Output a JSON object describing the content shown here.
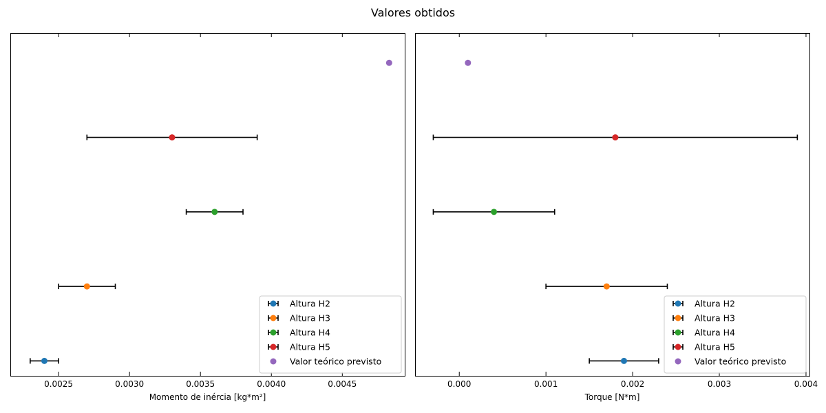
{
  "figure_title": "Valores obtidos",
  "chart_data": [
    {
      "type": "scatter",
      "title": "",
      "xlabel": "Momento de inércia [kg*m²]",
      "ylabel": "",
      "xlim": [
        0.00216,
        0.00494
      ],
      "ylim": [
        -0.2,
        4.4
      ],
      "xticks": [
        0.0025,
        0.003,
        0.0035,
        0.004,
        0.0045
      ],
      "xtick_labels": [
        "0.0025",
        "0.0030",
        "0.0035",
        "0.0040",
        "0.0045"
      ],
      "grid": false,
      "legend_position": "lower-right",
      "series": [
        {
          "name": "Altura H2",
          "color": "#1f77b4",
          "errorbar": true,
          "x": 0.0024,
          "xlow": 0.0023,
          "xhigh": 0.0025,
          "y": 0
        },
        {
          "name": "Altura H3",
          "color": "#ff7f0e",
          "errorbar": true,
          "x": 0.0027,
          "xlow": 0.0025,
          "xhigh": 0.0029,
          "y": 1
        },
        {
          "name": "Altura H4",
          "color": "#2ca02c",
          "errorbar": true,
          "x": 0.0036,
          "xlow": 0.0034,
          "xhigh": 0.0038,
          "y": 2
        },
        {
          "name": "Altura H5",
          "color": "#d62728",
          "errorbar": true,
          "x": 0.0033,
          "xlow": 0.0027,
          "xhigh": 0.0039,
          "y": 3
        },
        {
          "name": "Valor teórico previsto",
          "color": "#9467bd",
          "errorbar": false,
          "x": 0.00483,
          "y": 4
        }
      ]
    },
    {
      "type": "scatter",
      "title": "",
      "xlabel": "Torque [N*m]",
      "ylabel": "",
      "xlim": [
        -0.00051,
        0.00404
      ],
      "ylim": [
        -0.2,
        4.4
      ],
      "xticks": [
        0.0,
        0.001,
        0.002,
        0.003,
        0.004
      ],
      "xtick_labels": [
        "0.000",
        "0.001",
        "0.002",
        "0.003",
        "0.004"
      ],
      "grid": false,
      "legend_position": "lower-right",
      "series": [
        {
          "name": "Altura H2",
          "color": "#1f77b4",
          "errorbar": true,
          "x": 0.0019,
          "xlow": 0.0015,
          "xhigh": 0.0023,
          "y": 0
        },
        {
          "name": "Altura H3",
          "color": "#ff7f0e",
          "errorbar": true,
          "x": 0.0017,
          "xlow": 0.001,
          "xhigh": 0.0024,
          "y": 1
        },
        {
          "name": "Altura H4",
          "color": "#2ca02c",
          "errorbar": true,
          "x": 0.0004,
          "xlow": -0.0003,
          "xhigh": 0.0011,
          "y": 2
        },
        {
          "name": "Altura H5",
          "color": "#d62728",
          "errorbar": true,
          "x": 0.0018,
          "xlow": -0.0003,
          "xhigh": 0.0039,
          "y": 3
        },
        {
          "name": "Valor teórico previsto",
          "color": "#9467bd",
          "errorbar": false,
          "x": 0.0001,
          "y": 4
        }
      ]
    }
  ]
}
